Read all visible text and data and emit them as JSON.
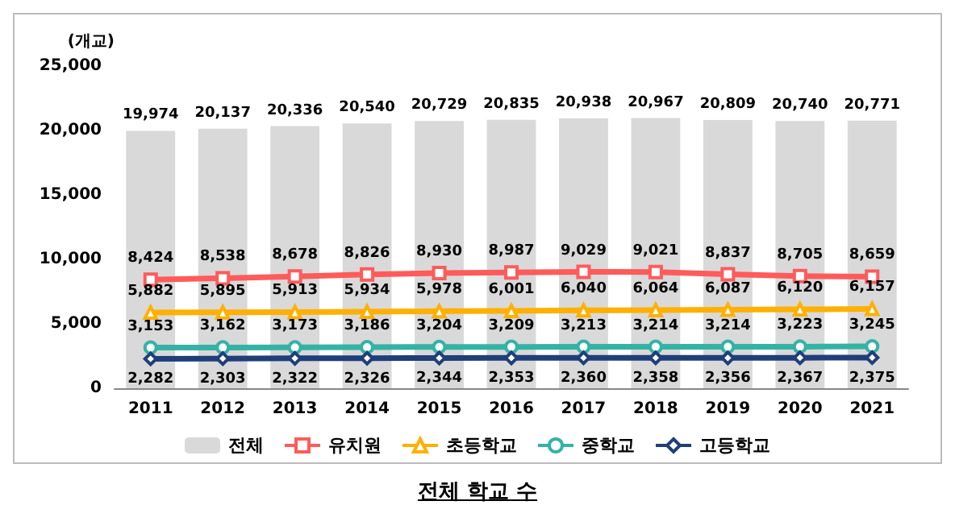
{
  "chart_data": {
    "type": "bar",
    "title": "전체 학교 수",
    "ylabel": "(개교)",
    "categories": [
      "2011",
      "2012",
      "2013",
      "2014",
      "2015",
      "2016",
      "2017",
      "2018",
      "2019",
      "2020",
      "2021"
    ],
    "series": [
      {
        "name": "전체",
        "color": "#d9d9d9",
        "values": [
          19974,
          20137,
          20336,
          20540,
          20729,
          20835,
          20938,
          20967,
          20809,
          20740,
          20771
        ],
        "value_labels": [
          "19,974",
          "20,137",
          "20,336",
          "20,540",
          "20,729",
          "20,835",
          "20,938",
          "20,967",
          "20,809",
          "20,740",
          "20,771"
        ]
      },
      {
        "name": "유치원",
        "type": "line",
        "color": "#ff5b5b",
        "marker": "square",
        "values": [
          8424,
          8538,
          8678,
          8826,
          8930,
          8987,
          9029,
          9021,
          8837,
          8705,
          8659
        ],
        "value_labels": [
          "8,424",
          "8,538",
          "8,678",
          "8,826",
          "8,930",
          "8,987",
          "9,029",
          "9,021",
          "8,837",
          "8,705",
          "8,659"
        ]
      },
      {
        "name": "초등학교",
        "type": "line",
        "color": "#ffb000",
        "marker": "triangle",
        "values": [
          5882,
          5895,
          5913,
          5934,
          5978,
          6001,
          6040,
          6064,
          6087,
          6120,
          6157
        ],
        "value_labels": [
          "5,882",
          "5,895",
          "5,913",
          "5,934",
          "5,978",
          "6,001",
          "6,040",
          "6,064",
          "6,087",
          "6,120",
          "6,157"
        ]
      },
      {
        "name": "중학교",
        "type": "line",
        "color": "#33b3a6",
        "marker": "circle",
        "values": [
          3153,
          3162,
          3173,
          3186,
          3204,
          3209,
          3213,
          3214,
          3214,
          3223,
          3245
        ],
        "value_labels": [
          "3,153",
          "3,162",
          "3,173",
          "3,186",
          "3,204",
          "3,209",
          "3,213",
          "3,214",
          "3,214",
          "3,223",
          "3,245"
        ]
      },
      {
        "name": "고등학교",
        "type": "line",
        "color": "#1f3f7a",
        "marker": "diamond",
        "values": [
          2282,
          2303,
          2322,
          2326,
          2344,
          2353,
          2360,
          2358,
          2356,
          2367,
          2375
        ],
        "value_labels": [
          "2,282",
          "2,303",
          "2,322",
          "2,326",
          "2,344",
          "2,353",
          "2,360",
          "2,358",
          "2,356",
          "2,367",
          "2,375"
        ]
      }
    ],
    "ylim": [
      0,
      25000
    ],
    "yticks": [
      0,
      {
        "value": 5000,
        "label": "5,000"
      },
      {
        "value": 10000,
        "label": "10,000"
      },
      {
        "value": 15000,
        "label": "15,000"
      },
      {
        "value": 20000,
        "label": "20,000"
      },
      {
        "value": 25000,
        "label": "25,000"
      }
    ],
    "grid": false,
    "legend": "bottom"
  }
}
